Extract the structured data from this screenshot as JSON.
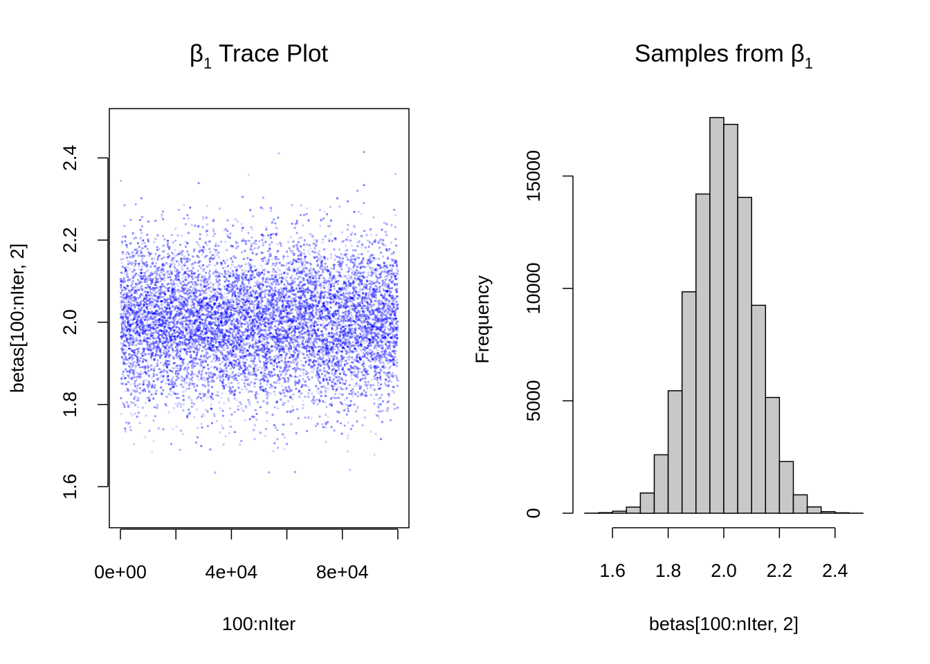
{
  "chart_data": [
    {
      "type": "scatter",
      "title": {
        "symbol": "β",
        "subscript": "1",
        "text": " Trace Plot"
      },
      "xlabel": "100:nIter",
      "ylabel": "betas[100:nIter, 2]",
      "xlim": [
        -4000,
        104000
      ],
      "ylim": [
        1.5,
        2.52
      ],
      "x_ticks": [
        0,
        20000,
        40000,
        60000,
        80000,
        100000
      ],
      "x_tick_labels": [
        "0e+00",
        "4e+04",
        "8e+04"
      ],
      "x_tick_label_values": [
        0,
        40000,
        80000
      ],
      "y_ticks": [
        1.6,
        1.8,
        2.0,
        2.2,
        2.4
      ],
      "y_tick_labels": [
        "1.6",
        "1.8",
        "2.0",
        "2.2",
        "2.4"
      ],
      "point_color": "#0000ff",
      "series": [
        {
          "x_start": 100,
          "x_end": 100000,
          "mean": 2.0,
          "sd": 0.1,
          "min": 1.54,
          "max": 2.49
        }
      ]
    },
    {
      "type": "bar",
      "title": {
        "text": "Samples from ",
        "symbol": "β",
        "subscript": "1"
      },
      "xlabel": "betas[100:nIter, 2]",
      "ylabel": "Frequency",
      "xlim": [
        1.5,
        2.5
      ],
      "ylim": [
        0,
        18000
      ],
      "bar_color": "#c8c8c8",
      "bins": [
        {
          "x0": 1.5,
          "x1": 1.55,
          "count": 3
        },
        {
          "x0": 1.55,
          "x1": 1.6,
          "count": 25
        },
        {
          "x0": 1.6,
          "x1": 1.65,
          "count": 90
        },
        {
          "x0": 1.65,
          "x1": 1.7,
          "count": 270
        },
        {
          "x0": 1.7,
          "x1": 1.75,
          "count": 900
        },
        {
          "x0": 1.75,
          "x1": 1.8,
          "count": 2600
        },
        {
          "x0": 1.8,
          "x1": 1.85,
          "count": 5450
        },
        {
          "x0": 1.85,
          "x1": 1.9,
          "count": 9850
        },
        {
          "x0": 1.9,
          "x1": 1.95,
          "count": 14200
        },
        {
          "x0": 1.95,
          "x1": 2.0,
          "count": 17600
        },
        {
          "x0": 2.0,
          "x1": 2.05,
          "count": 17300
        },
        {
          "x0": 2.05,
          "x1": 2.1,
          "count": 14050
        },
        {
          "x0": 2.1,
          "x1": 2.15,
          "count": 9250
        },
        {
          "x0": 2.15,
          "x1": 2.2,
          "count": 5150
        },
        {
          "x0": 2.2,
          "x1": 2.25,
          "count": 2300
        },
        {
          "x0": 2.25,
          "x1": 2.3,
          "count": 820
        },
        {
          "x0": 2.3,
          "x1": 2.35,
          "count": 280
        },
        {
          "x0": 2.35,
          "x1": 2.4,
          "count": 70
        },
        {
          "x0": 2.4,
          "x1": 2.45,
          "count": 20
        },
        {
          "x0": 2.45,
          "x1": 2.5,
          "count": 4
        }
      ],
      "x_ticks": [
        1.6,
        1.8,
        2.0,
        2.2,
        2.4
      ],
      "x_tick_labels": [
        "1.6",
        "1.8",
        "2.0",
        "2.2",
        "2.4"
      ],
      "y_ticks": [
        0,
        5000,
        10000,
        15000
      ],
      "y_tick_labels": [
        "0",
        "5000",
        "10000",
        "15000"
      ]
    }
  ]
}
